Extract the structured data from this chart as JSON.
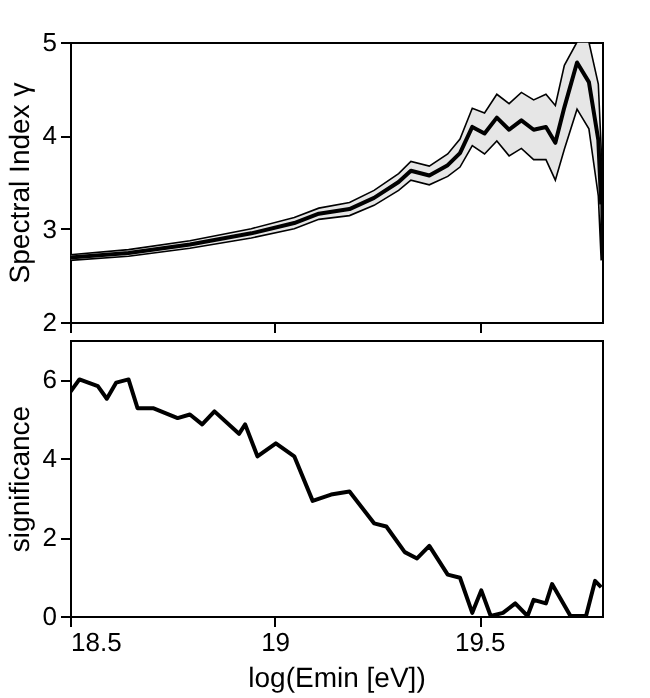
{
  "chart_data": [
    {
      "type": "line",
      "ylabel": "Spectral Index γ",
      "xlim": [
        18.5,
        19.8
      ],
      "xticks": [
        18.5,
        19,
        19.5
      ],
      "ylim": [
        2,
        5
      ],
      "yticks": [
        2,
        3,
        4,
        5
      ],
      "tick_labels": "y",
      "grid": false,
      "x": [
        18.5,
        18.643,
        18.793,
        18.943,
        19.048,
        19.108,
        19.183,
        19.243,
        19.303,
        19.333,
        19.378,
        19.423,
        19.453,
        19.483,
        19.513,
        19.543,
        19.573,
        19.603,
        19.633,
        19.663,
        19.686,
        19.708,
        19.739,
        19.768,
        19.791,
        19.798
      ],
      "series": [
        {
          "color": "#000000",
          "values": [
            2.69,
            2.74,
            2.83,
            2.95,
            3.06,
            3.16,
            3.21,
            3.33,
            3.5,
            3.62,
            3.57,
            3.68,
            3.81,
            4.09,
            4.02,
            4.19,
            4.06,
            4.16,
            4.06,
            4.09,
            3.92,
            4.3,
            4.78,
            4.57,
            3.95,
            3.26
          ],
          "lower": [
            2.66,
            2.705,
            2.79,
            2.9,
            3.0,
            3.1,
            3.14,
            3.25,
            3.41,
            3.52,
            3.47,
            3.56,
            3.66,
            3.89,
            3.8,
            3.94,
            3.78,
            3.86,
            3.74,
            3.74,
            3.52,
            3.85,
            4.28,
            4.07,
            3.35,
            2.66
          ],
          "upper": [
            2.72,
            2.775,
            2.87,
            3.0,
            3.12,
            3.22,
            3.28,
            3.41,
            3.59,
            3.72,
            3.67,
            3.8,
            3.96,
            4.29,
            4.24,
            4.44,
            4.34,
            4.46,
            4.38,
            4.44,
            4.32,
            4.75,
            5.0,
            5.0,
            4.55,
            3.86
          ]
        }
      ]
    },
    {
      "type": "line",
      "xlabel": "log(Emin  [eV])",
      "ylabel": "significance",
      "xlim": [
        18.5,
        19.8
      ],
      "xticks": [
        18.5,
        19,
        19.5
      ],
      "ylim": [
        0,
        7
      ],
      "yticks": [
        0,
        2,
        4,
        6
      ],
      "grid": false,
      "x": [
        18.5,
        18.523,
        18.568,
        18.59,
        18.613,
        18.643,
        18.665,
        18.703,
        18.763,
        18.793,
        18.823,
        18.853,
        18.913,
        18.928,
        18.958,
        19.003,
        19.048,
        19.093,
        19.138,
        19.183,
        19.243,
        19.273,
        19.318,
        19.348,
        19.378,
        19.423,
        19.453,
        19.483,
        19.505,
        19.528,
        19.558,
        19.588,
        19.618,
        19.633,
        19.663,
        19.678,
        19.723,
        19.761,
        19.783,
        19.798
      ],
      "series": [
        {
          "color": "#000000",
          "values": [
            5.67,
            6.0,
            5.83,
            5.51,
            5.92,
            6.0,
            5.27,
            5.27,
            5.02,
            5.11,
            4.86,
            5.19,
            4.62,
            4.86,
            4.05,
            4.38,
            4.05,
            2.92,
            3.08,
            3.16,
            2.35,
            2.27,
            1.62,
            1.46,
            1.78,
            1.05,
            0.97,
            0.08,
            0.65,
            0,
            0.08,
            0.32,
            0,
            0.41,
            0.32,
            0.81,
            0,
            0,
            0.89,
            0.73
          ]
        }
      ]
    }
  ]
}
